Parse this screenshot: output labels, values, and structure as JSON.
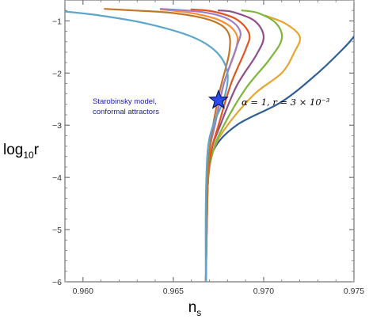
{
  "chart_data": {
    "type": "line",
    "title": "",
    "xlabel_main": "n",
    "xlabel_sub": "s",
    "ylabel_main": "log",
    "ylabel_sub": "10",
    "ylabel_tail": "r",
    "xlim": [
      0.959,
      0.975
    ],
    "ylim": [
      -6,
      -0.6
    ],
    "xticks": [
      0.96,
      0.965,
      0.97,
      0.975
    ],
    "xtick_labels": [
      "0.960",
      "0.965",
      "0.970",
      "0.975"
    ],
    "yticks": [
      -6,
      -5,
      -4,
      -3,
      -2,
      -1
    ],
    "ytick_labels": [
      "−6",
      "−5",
      "−4",
      "−3",
      "−2",
      "−1"
    ],
    "grid": false,
    "legend": "none",
    "annotation_model_line1": "Starobinsky model,",
    "annotation_model_line2": "conformal attractors",
    "annotation_point": "α = 1,  r = 3 × 10⁻³",
    "marker": {
      "x": 0.9675,
      "y": -2.52,
      "color": "#2b4cf2"
    },
    "series": [
      {
        "color": "#2f5f98",
        "points": [
          [
            0.9668,
            -6.0
          ],
          [
            0.9669,
            -4.2
          ],
          [
            0.9672,
            -3.5
          ],
          [
            0.9685,
            -3.0
          ],
          [
            0.971,
            -2.55
          ],
          [
            0.973,
            -2.0
          ],
          [
            0.9745,
            -1.5
          ],
          [
            0.975,
            -1.3
          ]
        ]
      },
      {
        "color": "#e8a52c",
        "points": [
          [
            0.9668,
            -6.0
          ],
          [
            0.9669,
            -4.2
          ],
          [
            0.9672,
            -3.5
          ],
          [
            0.968,
            -3.0
          ],
          [
            0.9695,
            -2.4
          ],
          [
            0.971,
            -2.0
          ],
          [
            0.9717,
            -1.6
          ],
          [
            0.972,
            -1.3
          ],
          [
            0.9712,
            -1.05
          ],
          [
            0.9701,
            -0.9
          ]
        ]
      },
      {
        "color": "#7db63a",
        "points": [
          [
            0.9668,
            -6.0
          ],
          [
            0.9669,
            -4.2
          ],
          [
            0.9672,
            -3.5
          ],
          [
            0.9678,
            -3.0
          ],
          [
            0.969,
            -2.3
          ],
          [
            0.9703,
            -1.75
          ],
          [
            0.971,
            -1.35
          ],
          [
            0.9707,
            -1.05
          ],
          [
            0.9697,
            -0.85
          ],
          [
            0.9688,
            -0.8
          ]
        ]
      },
      {
        "color": "#8e4f8a",
        "points": [
          [
            0.9668,
            -6.0
          ],
          [
            0.9669,
            -4.2
          ],
          [
            0.9671,
            -3.5
          ],
          [
            0.9676,
            -3.0
          ],
          [
            0.9685,
            -2.25
          ],
          [
            0.9696,
            -1.65
          ],
          [
            0.97,
            -1.3
          ],
          [
            0.9695,
            -1.0
          ],
          [
            0.9683,
            -0.83
          ],
          [
            0.9675,
            -0.8
          ]
        ]
      },
      {
        "color": "#e2551f",
        "points": [
          [
            0.9668,
            -6.0
          ],
          [
            0.9669,
            -4.2
          ],
          [
            0.9671,
            -3.5
          ],
          [
            0.9675,
            -3.0
          ],
          [
            0.9682,
            -2.2
          ],
          [
            0.969,
            -1.55
          ],
          [
            0.9692,
            -1.25
          ],
          [
            0.9685,
            -0.97
          ],
          [
            0.9672,
            -0.82
          ],
          [
            0.966,
            -0.78
          ]
        ]
      },
      {
        "color": "#ff8e34",
        "points": [
          [
            0.9668,
            -6.0
          ],
          [
            0.9669,
            -4.2
          ],
          [
            0.967,
            -3.5
          ],
          [
            0.9673,
            -3.0
          ],
          [
            0.9678,
            -2.2
          ],
          [
            0.9685,
            -1.5
          ],
          [
            0.9684,
            -1.2
          ],
          [
            0.9675,
            -0.98
          ],
          [
            0.966,
            -0.85
          ],
          [
            0.9643,
            -0.78
          ]
        ]
      },
      {
        "color": "#9b7ec8",
        "points": [
          [
            0.9668,
            -6.0
          ],
          [
            0.9669,
            -4.2
          ],
          [
            0.967,
            -3.5
          ],
          [
            0.9673,
            -3.0
          ],
          [
            0.9678,
            -2.2
          ],
          [
            0.9685,
            -1.5
          ],
          [
            0.9687,
            -1.2
          ],
          [
            0.968,
            -0.96
          ],
          [
            0.9666,
            -0.83
          ],
          [
            0.9643,
            -0.77
          ]
        ]
      },
      {
        "color": "#c2762a",
        "points": [
          [
            0.9668,
            -6.0
          ],
          [
            0.9669,
            -4.2
          ],
          [
            0.967,
            -3.5
          ],
          [
            0.9672,
            -3.0
          ],
          [
            0.9676,
            -2.3
          ],
          [
            0.9681,
            -1.6
          ],
          [
            0.968,
            -1.2
          ],
          [
            0.967,
            -0.98
          ],
          [
            0.965,
            -0.85
          ],
          [
            0.9628,
            -0.8
          ],
          [
            0.9612,
            -0.77
          ]
        ]
      },
      {
        "color": "#5ea6cc",
        "points": [
          [
            0.9668,
            -6.0
          ],
          [
            0.9668,
            -4.5
          ],
          [
            0.9669,
            -3.5
          ],
          [
            0.9672,
            -3.0
          ],
          [
            0.9678,
            -2.5
          ],
          [
            0.968,
            -2.0
          ],
          [
            0.9674,
            -1.6
          ],
          [
            0.966,
            -1.3
          ],
          [
            0.9635,
            -1.05
          ],
          [
            0.961,
            -0.9
          ],
          [
            0.959,
            -0.82
          ]
        ]
      }
    ]
  }
}
